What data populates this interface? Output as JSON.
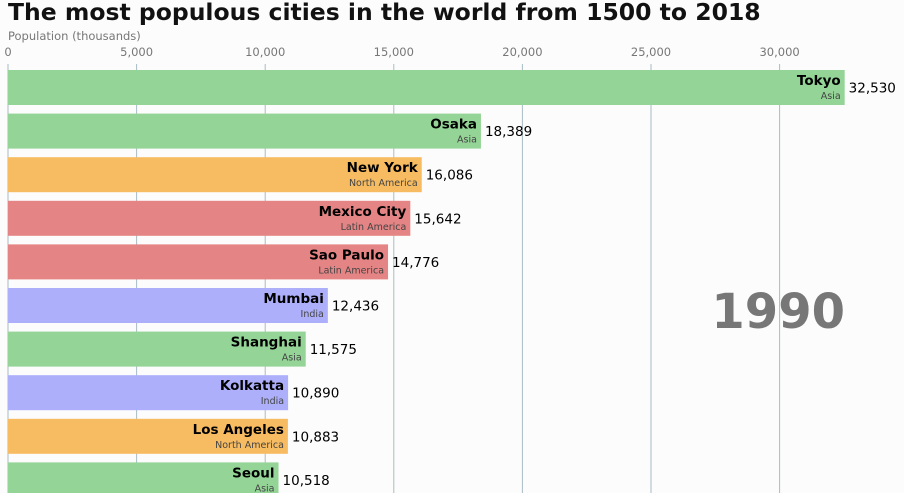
{
  "chart_data": {
    "type": "bar",
    "orientation": "horizontal",
    "title": "The most populous cities in the world from 1500 to 2018",
    "xlabel": "Population (thousands)",
    "ylabel": "",
    "xlim": [
      0,
      34000
    ],
    "xticks": [
      0,
      5000,
      10000,
      15000,
      20000,
      25000,
      30000
    ],
    "xtick_labels": [
      "0",
      "5,000",
      "10,000",
      "15,000",
      "20,000",
      "25,000",
      "30,000"
    ],
    "grid": true,
    "year": "1990",
    "colors": {
      "Asia": "#94d597",
      "North America": "#f7bc62",
      "Latin America": "#e58485",
      "India": "#adaffb"
    },
    "categories": [
      "Tokyo",
      "Osaka",
      "New York",
      "Mexico City",
      "Sao Paulo",
      "Mumbai",
      "Shanghai",
      "Kolkatta",
      "Los Angeles",
      "Seoul"
    ],
    "groups": [
      "Asia",
      "Asia",
      "North America",
      "Latin America",
      "Latin America",
      "India",
      "Asia",
      "India",
      "North America",
      "Asia"
    ],
    "values": [
      32530,
      18389,
      16086,
      15642,
      14776,
      12436,
      11575,
      10890,
      10883,
      10518
    ],
    "value_labels": [
      "32,530",
      "18,389",
      "16,086",
      "15,642",
      "14,776",
      "12,436",
      "11,575",
      "10,890",
      "10,883",
      "10,518"
    ]
  }
}
